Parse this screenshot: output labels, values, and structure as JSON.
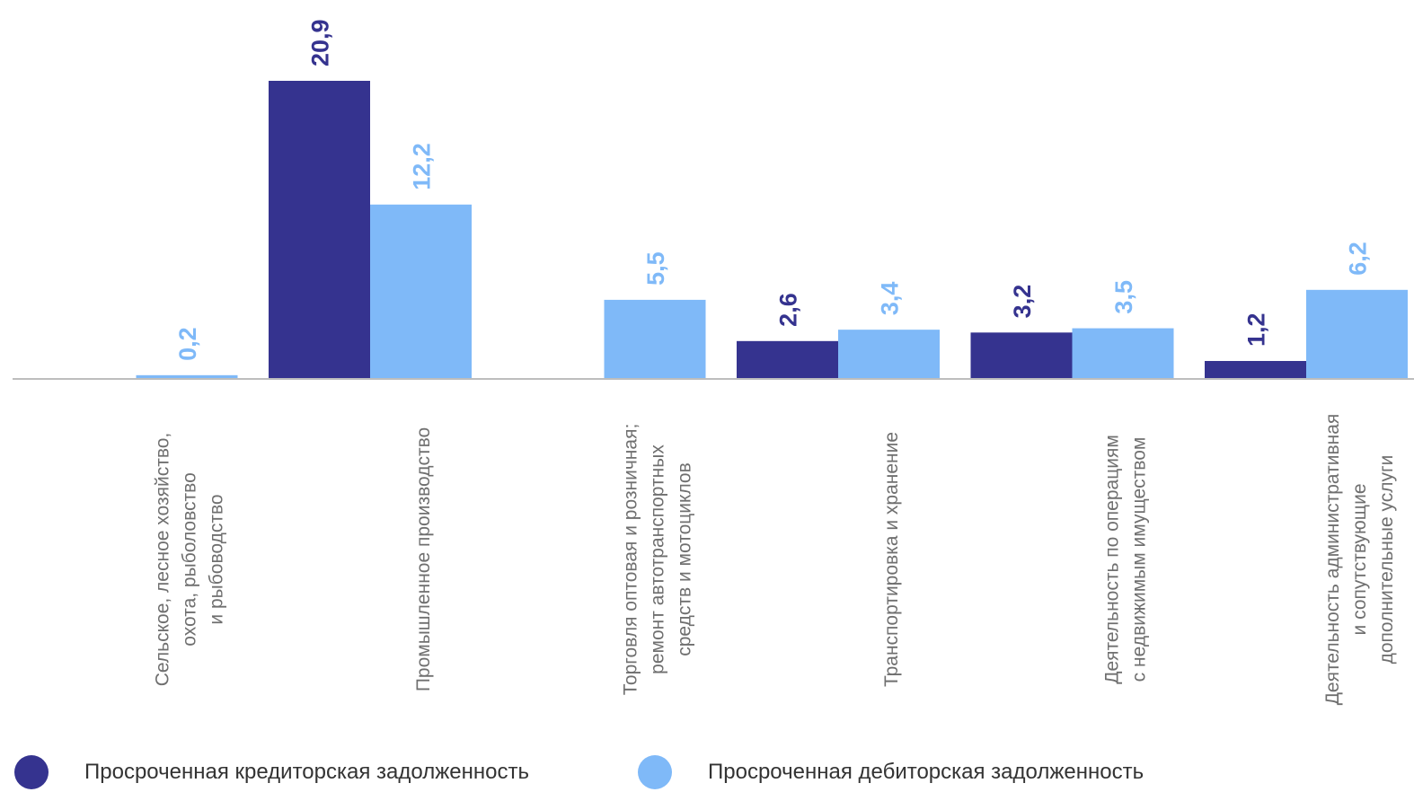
{
  "chart_data": {
    "type": "bar",
    "categories": [
      [
        "Сельское, лесное хозяйство,",
        "охота, рыболовство",
        "и рыбоводство"
      ],
      [
        "Промышленное производство"
      ],
      [
        "Торговля оптовая и розничная;",
        "ремонт автотранспортных",
        "средств и мотоциклов"
      ],
      [
        "Транспортировка и хранение"
      ],
      [
        "Деятельность по операциям",
        "с недвижимым имуществом"
      ],
      [
        "Деятельность административная",
        "и сопутствующие",
        "дополнительные услуги"
      ]
    ],
    "series": [
      {
        "name": "Просроченная кредиторская задолженность",
        "color": "#35338f",
        "values": [
          null,
          20.9,
          null,
          2.6,
          3.2,
          1.2
        ],
        "labels": [
          "",
          "20,9",
          "",
          "2,6",
          "3,2",
          "1,2"
        ]
      },
      {
        "name": "Просроченная дебиторская задолженность",
        "color": "#7fb9f8",
        "values": [
          0.2,
          12.2,
          5.5,
          3.4,
          3.5,
          6.2
        ],
        "labels": [
          "0,2",
          "12,2",
          "5,5",
          "3,4",
          "3,5",
          "6,2"
        ]
      }
    ],
    "ylim": [
      0,
      20.9
    ],
    "grid": false,
    "legend": "bottom"
  }
}
